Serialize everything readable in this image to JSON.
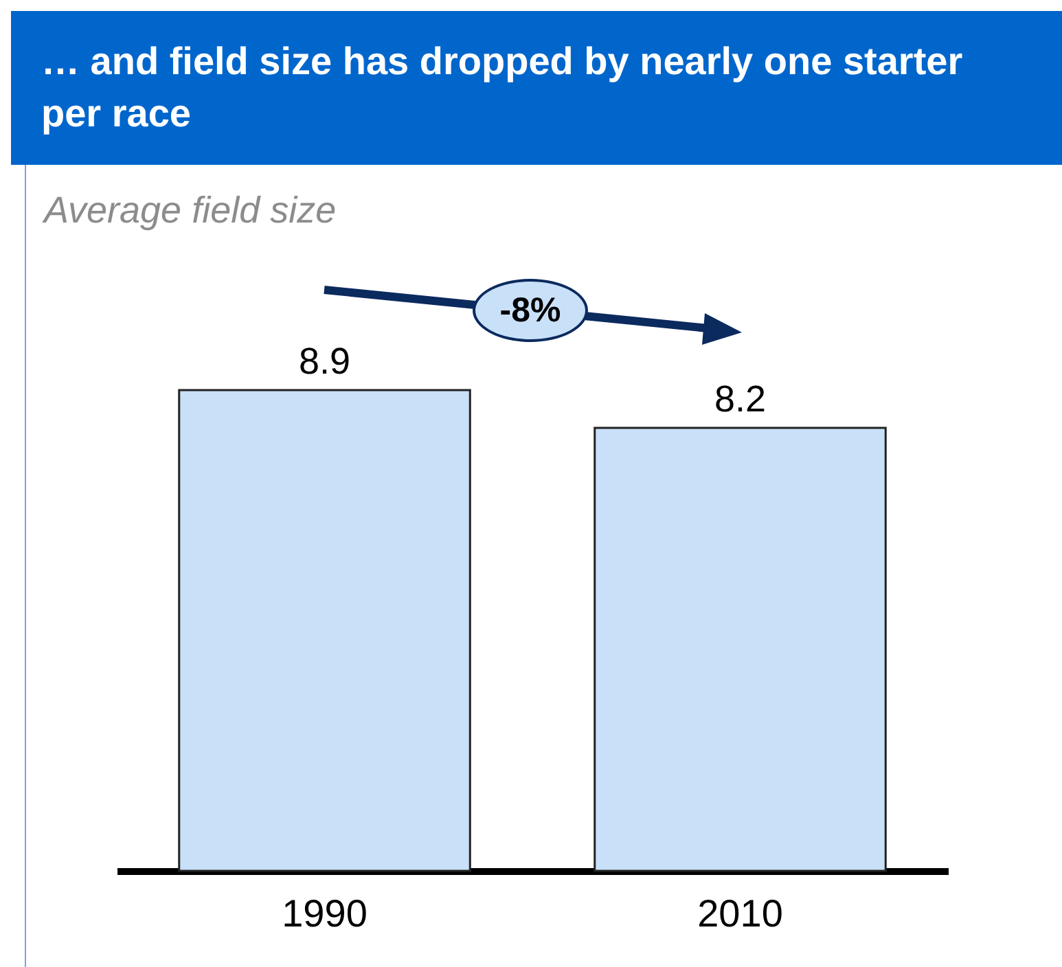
{
  "chart_data": {
    "type": "bar",
    "title": "… and field size has dropped by nearly one starter per race",
    "subtitle": "Average field size",
    "categories": [
      "1990",
      "2010"
    ],
    "values": [
      8.9,
      8.2
    ],
    "color": "#c9e0f9",
    "data_labels": true,
    "grid": false,
    "annotations": [
      "-8%"
    ]
  }
}
